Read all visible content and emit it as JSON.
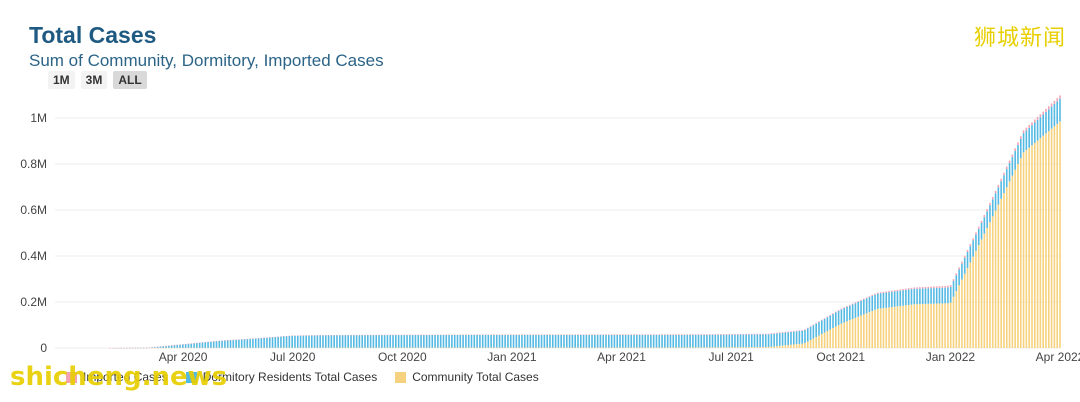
{
  "title": "Total Cases",
  "subtitle": "Sum of Community, Dormitory, Imported Cases",
  "range_buttons": [
    "1M",
    "3M",
    "ALL"
  ],
  "active_range": "ALL",
  "watermark_top": "狮城新闻",
  "watermark_bottom": "shicheng.news",
  "chart_data": {
    "type": "bar",
    "stacked": true,
    "x_ticks": [
      "Apr 2020",
      "Jul 2020",
      "Oct 2020",
      "Jan 2021",
      "Apr 2021",
      "Jul 2021",
      "Oct 2021",
      "Jan 2022",
      "Apr 2022"
    ],
    "y_ticks": [
      "0",
      "0.2M",
      "0.4M",
      "0.6M",
      "0.8M",
      "1M"
    ],
    "ylim": [
      0,
      1100000
    ],
    "x": [
      "2020-02",
      "2020-03",
      "2020-04",
      "2020-05",
      "2020-06",
      "2020-07",
      "2020-08",
      "2020-09",
      "2020-10",
      "2020-11",
      "2020-12",
      "2021-01",
      "2021-02",
      "2021-03",
      "2021-04",
      "2021-05",
      "2021-06",
      "2021-07",
      "2021-08",
      "2021-09",
      "2021-10",
      "2021-11",
      "2021-12",
      "2022-01",
      "2022-02",
      "2022-03",
      "2022-04"
    ],
    "series": [
      {
        "name": "Imported Cases",
        "color": "#f4a3b4",
        "values": [
          20,
          500,
          600,
          650,
          700,
          750,
          900,
          1100,
          1300,
          1500,
          1700,
          2000,
          2100,
          2200,
          2400,
          2500,
          2600,
          2700,
          2900,
          3100,
          3500,
          4500,
          6000,
          8000,
          10000,
          12000,
          14000
        ]
      },
      {
        "name": "Dormitory Residents Total Cases",
        "color": "#54b9e3",
        "values": [
          0,
          100,
          15000,
          30000,
          40000,
          52000,
          54000,
          54500,
          54600,
          54700,
          54750,
          54800,
          54850,
          54900,
          54950,
          55000,
          55050,
          55100,
          55200,
          56000,
          62000,
          66000,
          67000,
          68000,
          72000,
          84000,
          99000
        ]
      },
      {
        "name": "Community Total Cases",
        "color": "#f7d27e",
        "values": [
          50,
          600,
          1000,
          1300,
          1500,
          1600,
          1650,
          1700,
          1750,
          1800,
          1850,
          1900,
          1950,
          2000,
          2050,
          2100,
          2300,
          3000,
          4000,
          20000,
          105000,
          170000,
          190000,
          195000,
          520000,
          850000,
          985000
        ]
      }
    ],
    "legend_position": "bottom-left"
  }
}
